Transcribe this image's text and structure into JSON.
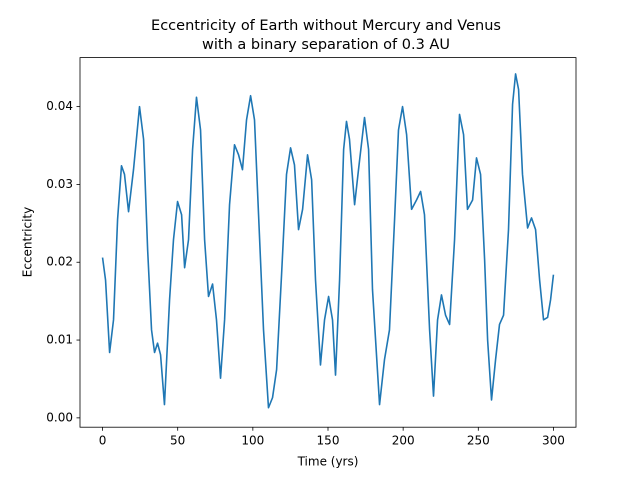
{
  "chart_data": {
    "type": "line",
    "title": [
      "Eccentricity of Earth without Mercury and Venus",
      "with a binary separation of 0.3 AU"
    ],
    "xlabel": "Time (yrs)",
    "ylabel": "Eccentricity",
    "color": "#1f77b4",
    "grid": false,
    "xlim": [
      -15,
      315
    ],
    "ylim": [
      -0.0012,
      0.0463
    ],
    "xticks": [
      0,
      50,
      100,
      150,
      200,
      250,
      300
    ],
    "yticks": [
      {
        "value": 0,
        "label": "0.00"
      },
      {
        "value": 0.01,
        "label": "0.01"
      },
      {
        "value": 0.02,
        "label": "0.02"
      },
      {
        "value": 0.03,
        "label": "0.03"
      },
      {
        "value": 0.04,
        "label": "0.04"
      }
    ],
    "x": [
      0,
      2,
      4.7,
      7.3,
      10,
      12.6,
      14.6,
      17.3,
      20.6,
      24.6,
      27.3,
      30,
      32.6,
      34.6,
      36.6,
      38.6,
      41.2,
      44.6,
      47.2,
      49.9,
      52.6,
      54.6,
      57.2,
      59.9,
      62.5,
      65.2,
      67.9,
      70.5,
      73.2,
      75.8,
      78.5,
      81.2,
      84.5,
      87.8,
      90.5,
      93.1,
      95.8,
      98.5,
      101.1,
      103.8,
      107.1,
      110.4,
      113.1,
      115.8,
      119.1,
      122.4,
      125.1,
      127.7,
      130.4,
      133.1,
      136.4,
      139.1,
      141.7,
      145,
      147.7,
      150.4,
      153,
      155,
      157.7,
      160.4,
      162.3,
      164.3,
      167.7,
      170.3,
      174.3,
      177,
      179.6,
      184.3,
      187.6,
      190.9,
      194.3,
      196.9,
      199.6,
      202.3,
      205.6,
      208.9,
      211.6,
      214.2,
      217.6,
      220.2,
      222.9,
      225.5,
      228.2,
      230.9,
      234.2,
      237.5,
      240.2,
      242.8,
      246.2,
      248.8,
      251.5,
      254.2,
      256.2,
      258.8,
      261.5,
      264.1,
      266.8,
      270.1,
      272.8,
      274.8,
      276.8,
      279.4,
      282.8,
      285.4,
      288.1,
      290.8,
      293.4,
      296.1,
      298.1,
      300
    ],
    "values": [
      0.0206,
      0.0177,
      0.0084,
      0.0126,
      0.0255,
      0.0324,
      0.0313,
      0.0265,
      0.0319,
      0.04,
      0.0358,
      0.0216,
      0.0113,
      0.0084,
      0.0096,
      0.0081,
      0.0017,
      0.0152,
      0.0229,
      0.0278,
      0.0261,
      0.0193,
      0.0229,
      0.0345,
      0.0412,
      0.037,
      0.0229,
      0.0156,
      0.0172,
      0.0126,
      0.0051,
      0.0126,
      0.0274,
      0.0351,
      0.0338,
      0.0319,
      0.0383,
      0.0414,
      0.0383,
      0.0261,
      0.0113,
      0.0013,
      0.0026,
      0.0062,
      0.0184,
      0.0313,
      0.0347,
      0.0325,
      0.0242,
      0.0268,
      0.0338,
      0.0306,
      0.0177,
      0.0068,
      0.0126,
      0.0156,
      0.0126,
      0.0055,
      0.0177,
      0.0345,
      0.0381,
      0.0358,
      0.0274,
      0.0319,
      0.0386,
      0.0345,
      0.0165,
      0.0017,
      0.0075,
      0.0113,
      0.0255,
      0.037,
      0.04,
      0.0364,
      0.0268,
      0.028,
      0.0291,
      0.0261,
      0.0113,
      0.0028,
      0.0126,
      0.0158,
      0.0132,
      0.012,
      0.0229,
      0.039,
      0.0364,
      0.0268,
      0.028,
      0.0334,
      0.0313,
      0.0203,
      0.01,
      0.0023,
      0.0075,
      0.012,
      0.0132,
      0.0242,
      0.0403,
      0.0442,
      0.0422,
      0.0313,
      0.0244,
      0.0257,
      0.0242,
      0.0177,
      0.0126,
      0.0129,
      0.0152,
      0.0184
    ]
  }
}
